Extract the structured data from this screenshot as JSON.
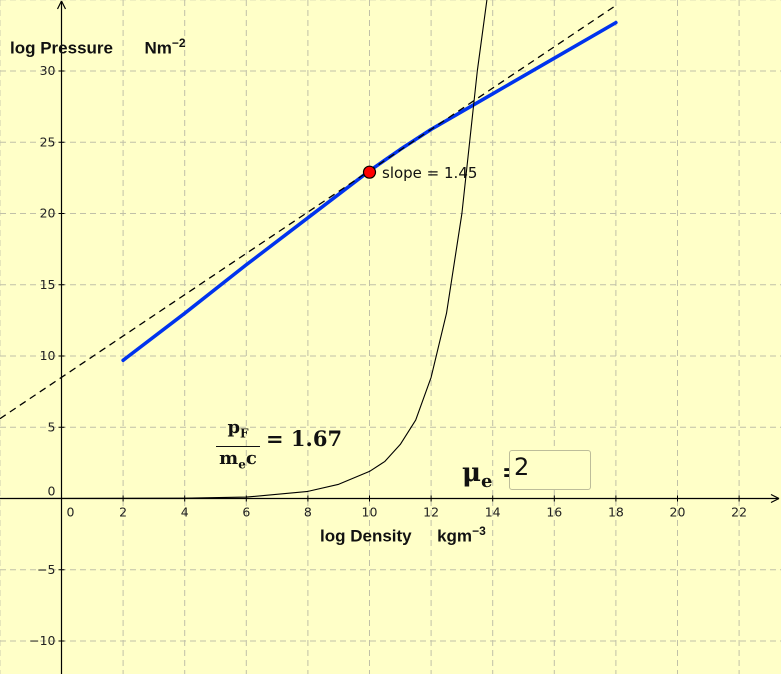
{
  "ui": {
    "ylabel_text": "log Pressure",
    "ylabel_unit_base": "Nm",
    "ylabel_unit_exp": "−2",
    "xlabel_text": "log Density",
    "xlabel_unit_base": "kgm",
    "xlabel_unit_exp": "−3",
    "slope_label": "slope = 1.45",
    "frac_num": "p",
    "frac_num_sub": "F",
    "frac_den": "m",
    "frac_den_sub": "e",
    "frac_den_tail": "c",
    "frac_value": "= 1.67",
    "mu_symbol": "μ",
    "mu_sub": "e",
    "mu_equals": " =",
    "mu_value": "2"
  },
  "colors": {
    "background": "#ffffc8",
    "grid": "#c0c0a8",
    "axes": "#000000",
    "relation_curve": "#0033ee",
    "tangent_line": "#000000",
    "momentum_curve": "#000000",
    "point_fill": "#ff0000",
    "point_stroke": "#000000"
  },
  "chart_data": {
    "type": "line",
    "title": "",
    "xlabel": "log Density  kgm−3",
    "ylabel": "log Pressure  Nm−2",
    "xlim": [
      -2,
      23.3
    ],
    "ylim": [
      -12.3,
      35
    ],
    "grid": true,
    "x_ticks": [
      "0",
      "2",
      "4",
      "6",
      "8",
      "10",
      "12",
      "14",
      "16",
      "18",
      "20",
      "22"
    ],
    "y_ticks": [
      "−10",
      "−5",
      "0",
      "5",
      "10",
      "15",
      "20",
      "25",
      "30"
    ],
    "series": [
      {
        "role": "pressure-density-relation",
        "style": "solid blue thick",
        "x": [
          2,
          4,
          6,
          8,
          10,
          11,
          12,
          14,
          16,
          18
        ],
        "y": [
          9.7,
          13.0,
          16.4,
          19.7,
          23.0,
          24.5,
          25.9,
          28.4,
          30.9,
          33.4
        ]
      },
      {
        "role": "tangent-line",
        "style": "dashed black",
        "slope": 1.45,
        "intercept": 8.5,
        "x_range": [
          -2,
          18
        ]
      },
      {
        "role": "momentum-ratio-curve",
        "style": "solid black thin",
        "x": [
          4,
          6,
          8,
          9,
          10,
          10.5,
          11,
          11.5,
          12,
          12.5,
          13,
          13.5,
          14
        ],
        "y": [
          0.02,
          0.1,
          0.5,
          1.0,
          1.9,
          2.6,
          3.8,
          5.5,
          8.5,
          13.0,
          20.0,
          30.0,
          38.0
        ]
      }
    ],
    "points": [
      {
        "role": "tangent-point",
        "x": 10,
        "y": 22.9
      }
    ],
    "annotations": [
      {
        "text": "slope = 1.45",
        "x": 10.5,
        "y": 22.9
      }
    ]
  }
}
